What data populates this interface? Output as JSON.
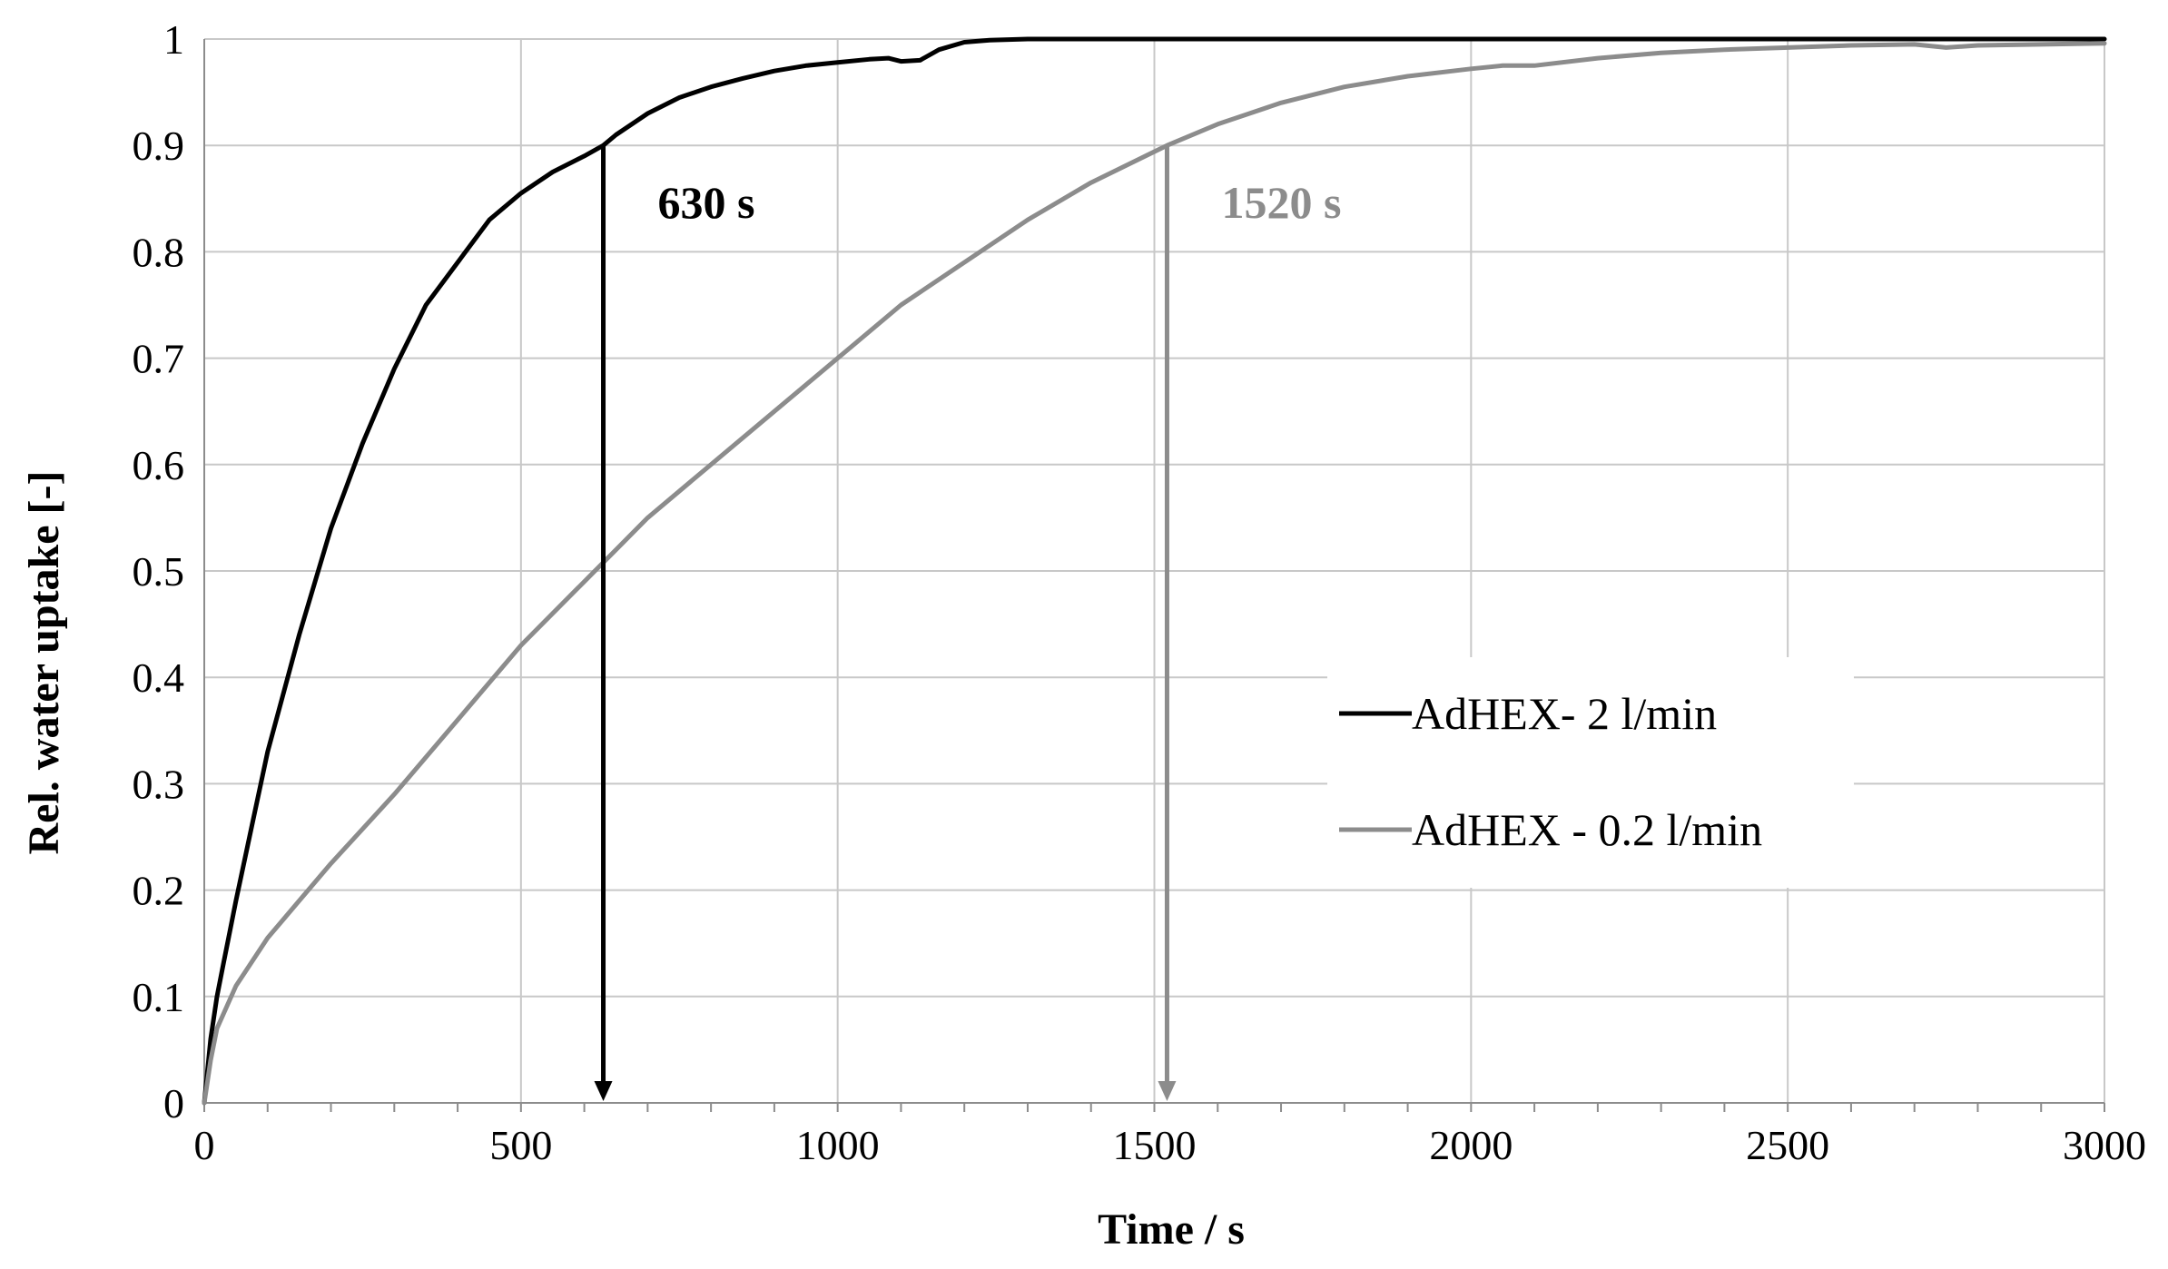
{
  "chart_data": {
    "type": "line",
    "title": "",
    "xlabel": "Time / s",
    "ylabel": "Rel. water uptake  [-]",
    "xlim": [
      0,
      3000
    ],
    "ylim": [
      0,
      1
    ],
    "xticks": [
      0,
      500,
      1000,
      1500,
      2000,
      2500,
      3000
    ],
    "yticks": [
      0,
      0.1,
      0.2,
      0.3,
      0.4,
      0.5,
      0.6,
      0.7,
      0.8,
      0.9,
      1
    ],
    "ytick_labels": [
      "0",
      "0.1",
      "0.2",
      "0.3",
      "0.4",
      "0.5",
      "0.6",
      "0.7",
      "0.8",
      "0.9",
      "1"
    ],
    "grid": true,
    "legend_position": "center-right",
    "series": [
      {
        "name": "AdHEX- 2 l/min",
        "color": "#000000",
        "x": [
          0,
          10,
          20,
          30,
          50,
          75,
          100,
          150,
          200,
          250,
          300,
          350,
          400,
          450,
          500,
          550,
          600,
          630,
          650,
          700,
          750,
          800,
          850,
          900,
          950,
          1000,
          1050,
          1080,
          1100,
          1130,
          1160,
          1200,
          1240,
          1300,
          1500,
          2000,
          2500,
          3000
        ],
        "values": [
          0,
          0.06,
          0.1,
          0.13,
          0.19,
          0.26,
          0.33,
          0.44,
          0.54,
          0.62,
          0.69,
          0.75,
          0.79,
          0.83,
          0.855,
          0.875,
          0.89,
          0.9,
          0.91,
          0.93,
          0.945,
          0.955,
          0.963,
          0.97,
          0.975,
          0.978,
          0.981,
          0.982,
          0.979,
          0.98,
          0.99,
          0.997,
          0.999,
          1.0,
          1.0,
          1.0,
          1.0,
          1.0
        ]
      },
      {
        "name": "AdHEX - 0.2 l/min",
        "color": "#8c8c8c",
        "x": [
          0,
          10,
          20,
          50,
          100,
          150,
          200,
          300,
          400,
          500,
          600,
          650,
          700,
          800,
          900,
          1000,
          1100,
          1200,
          1300,
          1400,
          1520,
          1600,
          1700,
          1800,
          1900,
          2000,
          2050,
          2100,
          2200,
          2300,
          2400,
          2500,
          2600,
          2700,
          2750,
          2800,
          3000
        ],
        "values": [
          0,
          0.04,
          0.07,
          0.11,
          0.155,
          0.19,
          0.225,
          0.29,
          0.36,
          0.43,
          0.49,
          0.52,
          0.55,
          0.6,
          0.65,
          0.7,
          0.75,
          0.79,
          0.83,
          0.865,
          0.9,
          0.92,
          0.94,
          0.955,
          0.965,
          0.972,
          0.975,
          0.975,
          0.982,
          0.987,
          0.99,
          0.992,
          0.994,
          0.995,
          0.992,
          0.994,
          0.996
        ]
      }
    ],
    "annotations": [
      {
        "text": "630 s",
        "x": 630,
        "from_y": 0.9,
        "color": "#000000"
      },
      {
        "text": "1520 s",
        "x": 1520,
        "from_y": 0.9,
        "color": "#8c8c8c"
      }
    ]
  }
}
